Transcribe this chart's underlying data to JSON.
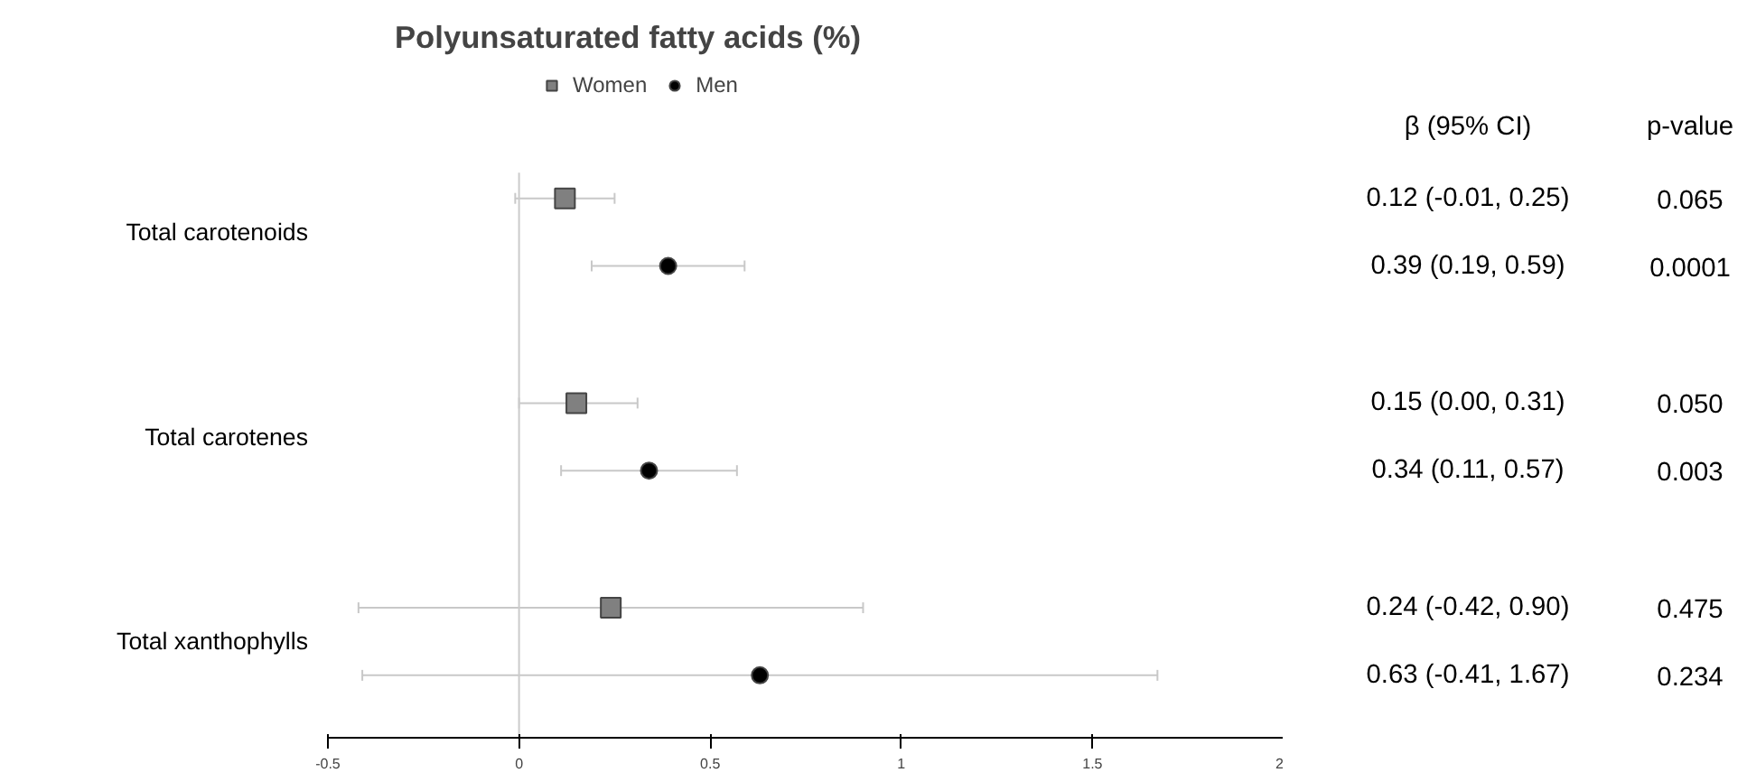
{
  "chart_data": {
    "type": "scatter",
    "title": "Polyunsaturated fatty acids (%)",
    "orientation": "horizontal",
    "legend": "top",
    "categories": [
      "Total carotenoids",
      "Total carotenes",
      "Total xanthophylls"
    ],
    "xlim": [
      -0.5,
      2
    ],
    "xticks": [
      -0.5,
      0,
      0.5,
      1,
      1.5,
      2
    ],
    "ref_lines": [
      {
        "axis": "x",
        "value": 0,
        "color": "#cccccc"
      }
    ],
    "series": [
      {
        "name": "Women",
        "color": "#808080",
        "marker": "square",
        "values": [
          0.12,
          0.15,
          0.24
        ],
        "errors": [
          [
            -0.01,
            0.25
          ],
          [
            0.0,
            0.31
          ],
          [
            -0.42,
            0.9
          ]
        ]
      },
      {
        "name": "Men",
        "color": "#000000",
        "marker": "circle",
        "values": [
          0.39,
          0.34,
          0.63
        ],
        "errors": [
          [
            0.19,
            0.59
          ],
          [
            0.11,
            0.57
          ],
          [
            -0.41,
            1.67
          ]
        ]
      }
    ],
    "annotations": [
      "β (95% CI)",
      "p-value",
      "0.12 (-0.01, 0.25)",
      "0.065",
      "0.39 (0.19, 0.59)",
      "0.0001",
      "0.15 (0.00, 0.31)",
      "0.050",
      "0.34 (0.11, 0.57)",
      "0.003",
      "0.24 (-0.42, 0.90)",
      "0.475",
      "0.63 (-0.41, 1.67)",
      "0.234"
    ]
  }
}
